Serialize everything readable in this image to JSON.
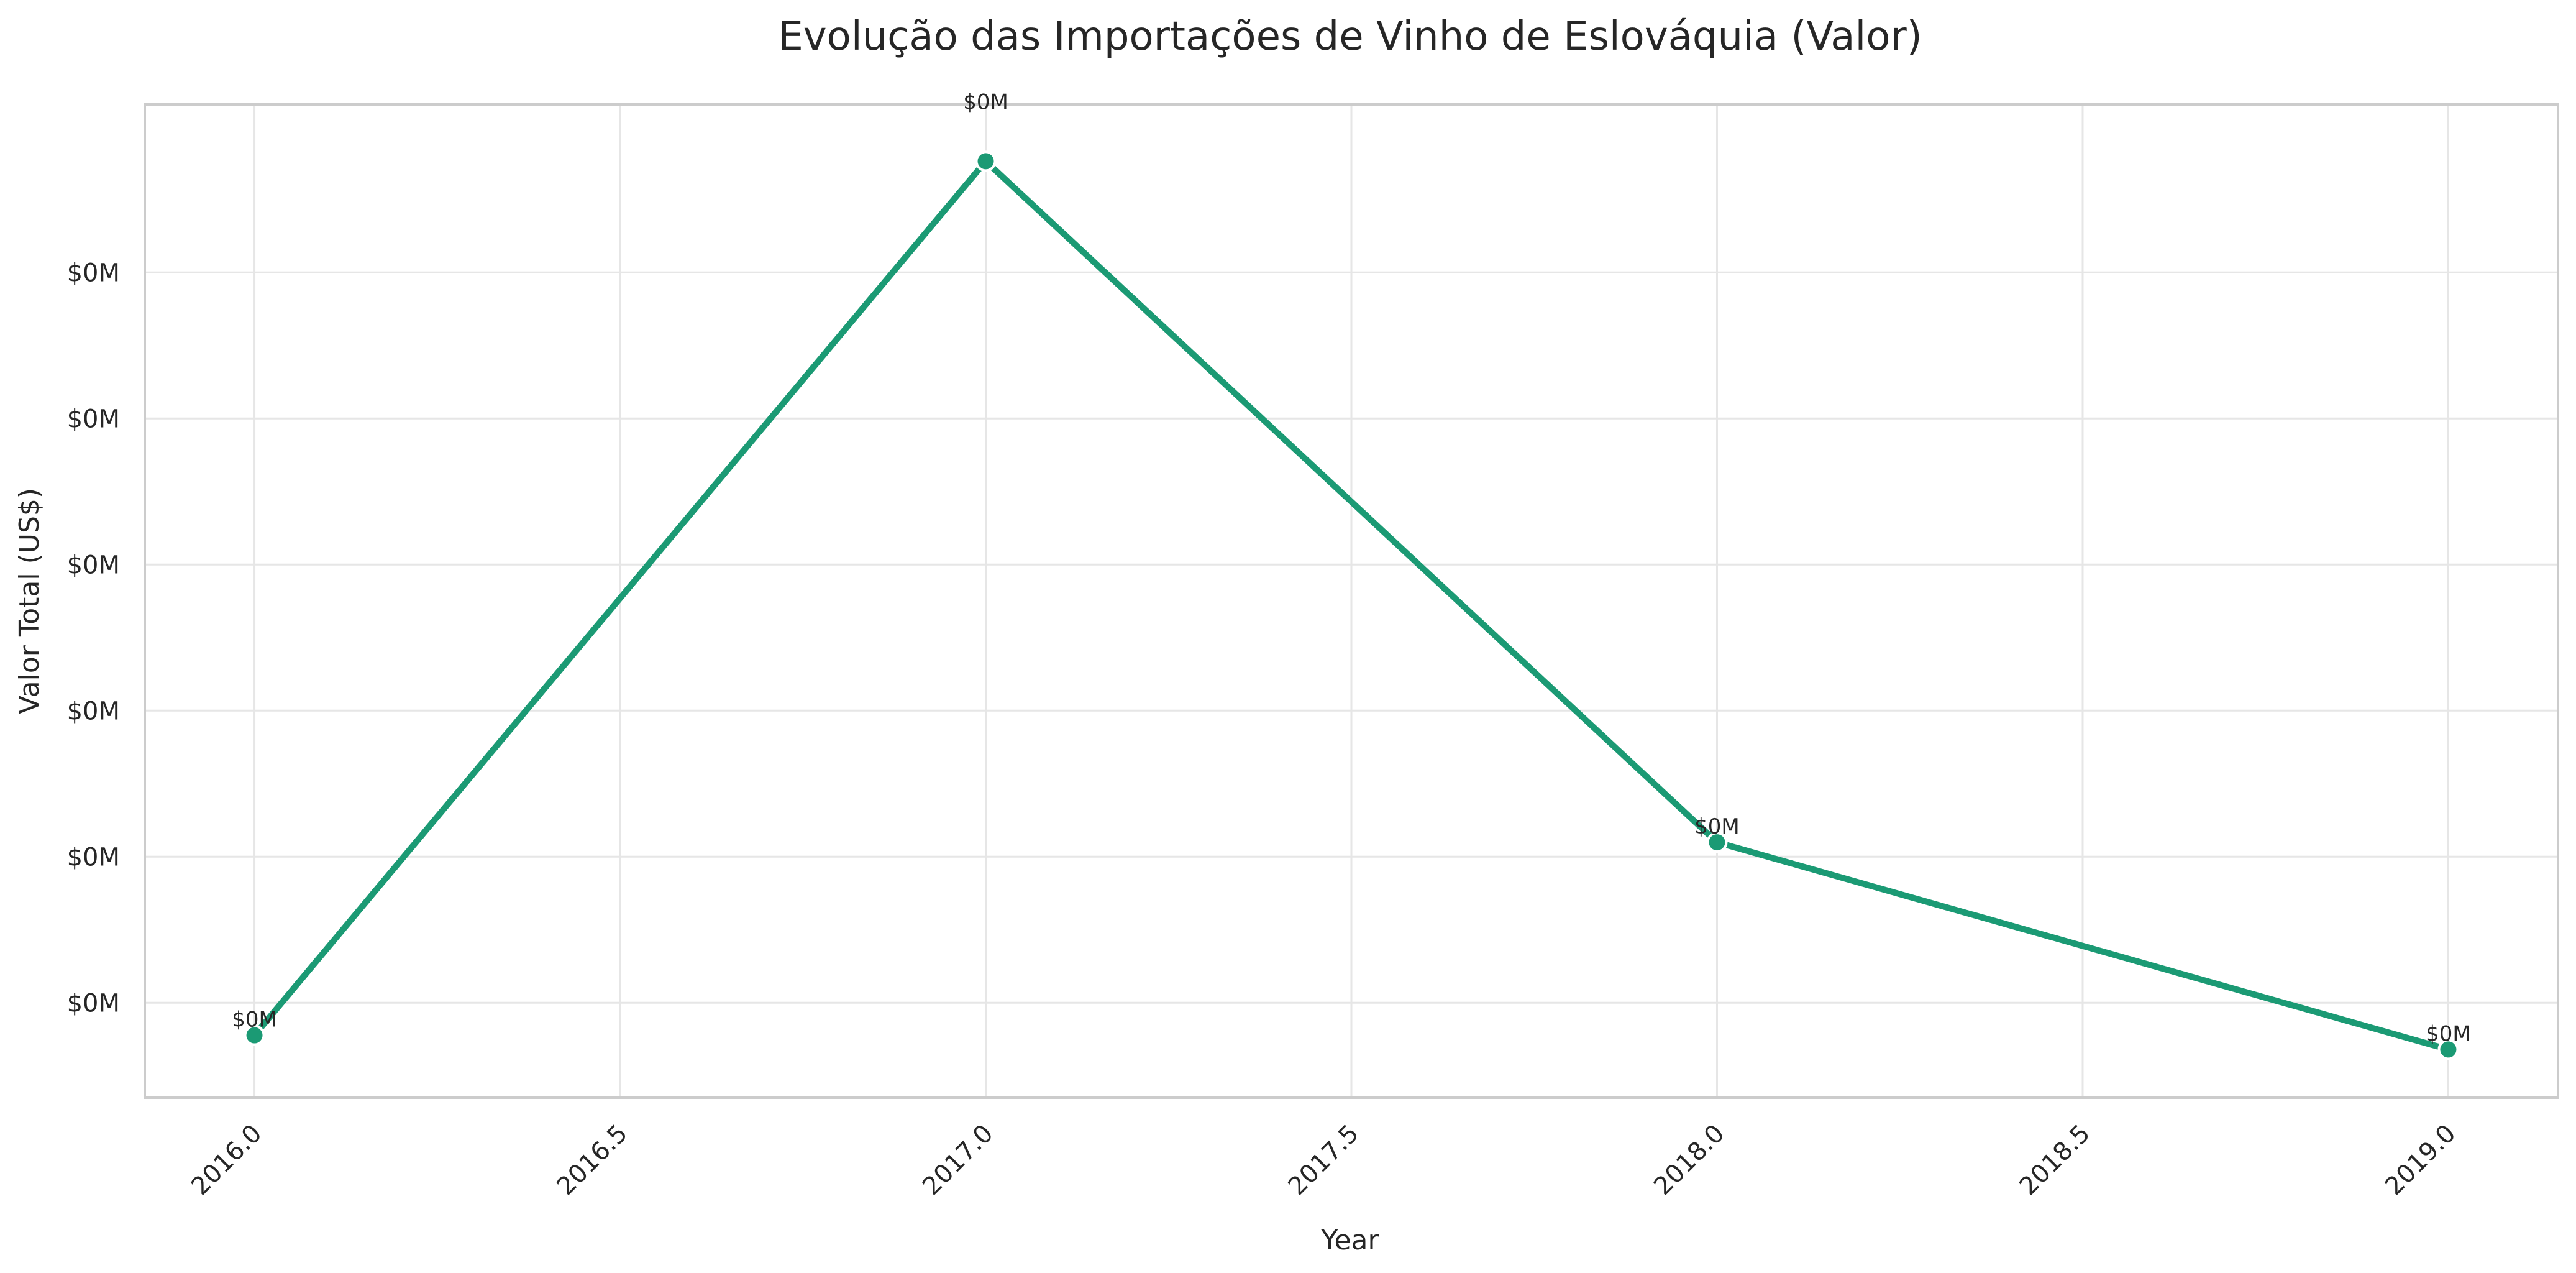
{
  "chart_data": {
    "type": "line",
    "title": "Evolução das Importações de Vinho de Eslováquia (Valor)",
    "xlabel": "Year",
    "ylabel": "Valor Total (US$)",
    "x": [
      2016,
      2017,
      2018,
      2019
    ],
    "series": [
      {
        "values": [
          0.22,
          3.3,
          0.9,
          0.17
        ],
        "data_labels": [
          "$0M",
          "$0M",
          "$0M",
          "$0M"
        ],
        "color": "#1b9a74"
      }
    ],
    "xlim": [
      2015.85,
      2019.15
    ],
    "ylim": [
      0.0,
      3.5
    ],
    "x_ticks": [
      2016.0,
      2016.5,
      2017.0,
      2017.5,
      2018.0,
      2018.5,
      2019.0
    ],
    "x_tick_labels": [
      "2016.0",
      "2016.5",
      "2017.0",
      "2017.5",
      "2018.0",
      "2018.5",
      "2019.0"
    ],
    "y_ticks": [
      0.65,
      1.3,
      1.95,
      2.6,
      3.25
    ],
    "y_tick_labels": [
      "$0M",
      "$0M",
      "$0M",
      "$0M",
      "$0M",
      "$0M"
    ],
    "y_ticks_all": [
      0.65,
      1.3,
      1.95,
      2.6,
      3.25,
      3.9
    ],
    "grid": true,
    "legend": "none"
  }
}
